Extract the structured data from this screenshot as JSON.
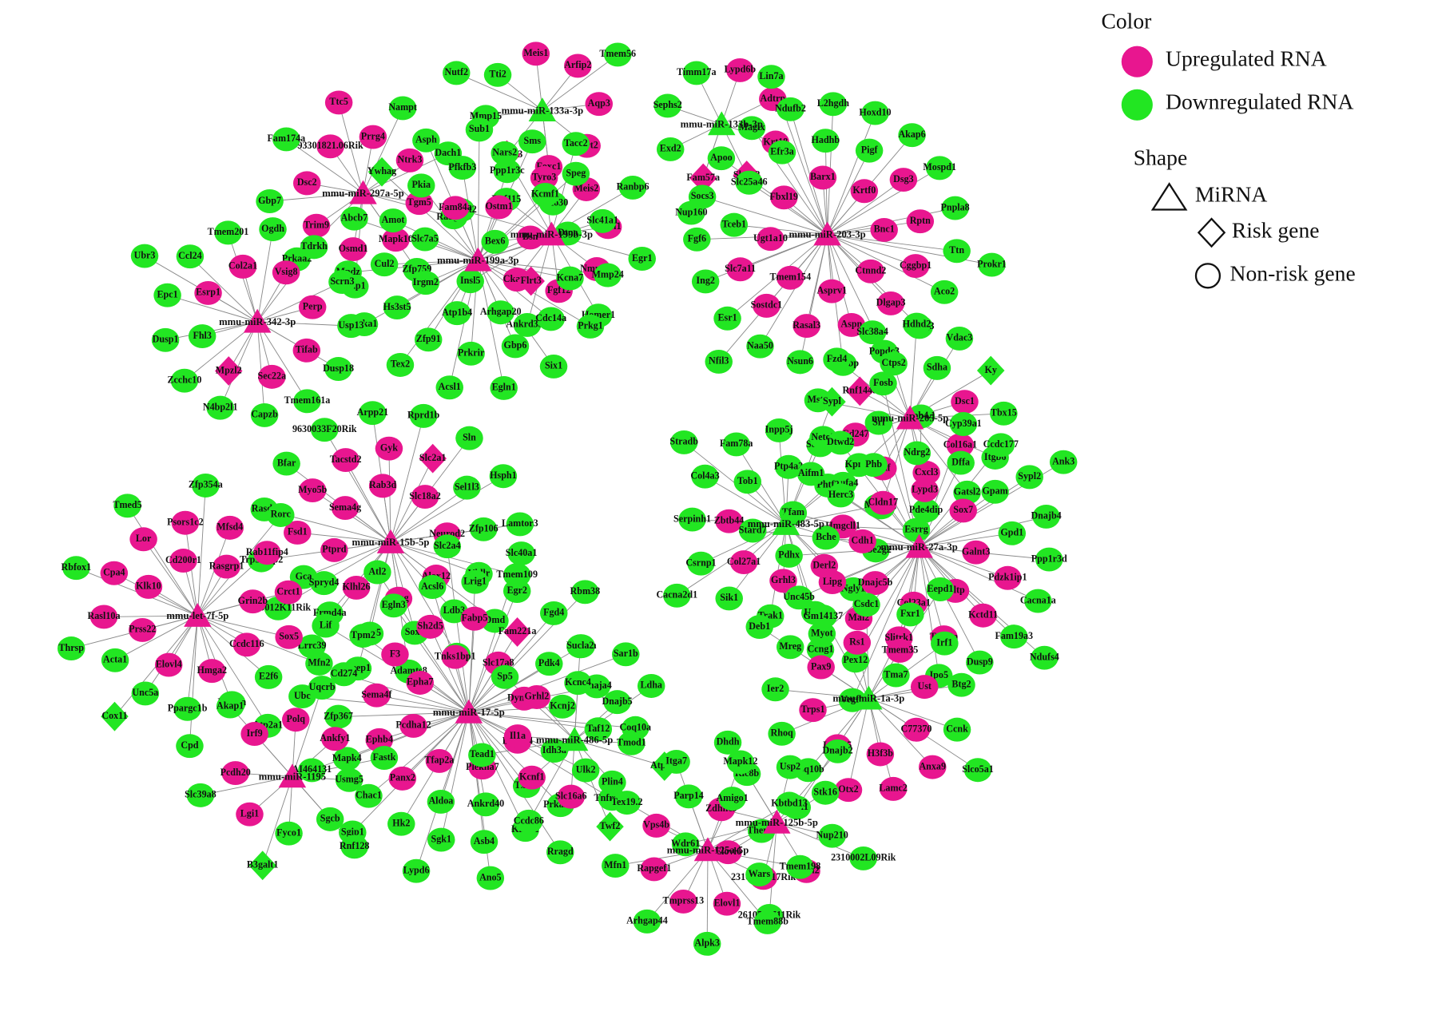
{
  "legend": {
    "color_title": "Color",
    "up_label": "Upregulated RNA",
    "down_label": "Downregulated RNA",
    "shape_title": "Shape",
    "mirna_label": "MiRNA",
    "risk_label": "Risk gene",
    "nonrisk_label": "Non-risk gene",
    "colors": {
      "up": "#e8168f",
      "down": "#22e622"
    }
  },
  "mirnas": [
    {
      "label": "mmu-miR-133a-3p",
      "color": "#22e622",
      "up": [
        "Meis1",
        "Arfip2",
        "Aqp3",
        "Prrt2",
        "Foxc1"
      ],
      "down": [
        "Mmp15",
        "Tti2",
        "Tmem56",
        "Fbxo30",
        "Nutf2"
      ],
      "up_risk": [
        "Gpr173"
      ],
      "down_risk": []
    },
    {
      "label": "mmu-miR-133b-3p",
      "color": "#22e622",
      "up": [
        "Lypd6b",
        "Adtrp",
        "Krt18"
      ],
      "down": [
        "Exd2",
        "Sephs2",
        "Timm17a",
        "Nup160"
      ],
      "up_risk": [
        "Slc1a2",
        "Fam57a"
      ],
      "down_risk": []
    },
    {
      "label": "mmu-miR-297a-5p",
      "color": "#e8168f",
      "up": [
        "93301821.06Rik",
        "Prrg4",
        "Ntrk3",
        "Tgm5",
        "Mapk10",
        "Osmd1",
        "Trim9",
        "Dsc2",
        "Ttc5"
      ],
      "down": [
        "Nampt",
        "Dach1",
        "Rabgef1",
        "Zfp759",
        "Pdp1",
        "Prkaa2",
        "Gbp7",
        "Fam174a"
      ],
      "up_risk": [],
      "down_risk": []
    },
    {
      "label": "mmu-miR-199b-3p",
      "color": "#e8168f",
      "up": [
        "Tyro3",
        "Meis2",
        "Nipsl1",
        "Nmnat2",
        "Fgf12",
        "Ckap4"
      ],
      "down": [
        "Bex6",
        "Rnf115",
        "Tacc2",
        "Ranbp6",
        "Egr1",
        "Homer1",
        "Ankrd33b",
        "Insl5",
        "B3galt2",
        "Nars2"
      ],
      "up_risk": [],
      "down_risk": []
    },
    {
      "label": "mmu-miR-199a-3p",
      "color": "#e8168f",
      "up": [
        "Fam84a",
        "Ostm1",
        "Bsn"
      ],
      "down": [
        "Arhgap20",
        "Atp1b4",
        "Irgm2",
        "Slc7a5",
        "Pfkfb3",
        "Ppp1r3c",
        "Kcmf1",
        "Dtna",
        "Kcna7",
        "Cdc14a",
        "Gbp6",
        "Prkrir",
        "Zfp91",
        "Hs3st5",
        "Cul2",
        "Amot",
        "Pkia",
        "Asph",
        "Sub1",
        "Sms",
        "Speg",
        "Slc41a1",
        "Mmp24",
        "Prkg1",
        "Six1",
        "Egln1",
        "Acsl1",
        "Tex2",
        "Phka1",
        "Mpdz",
        "Abcb7"
      ],
      "up_risk": [
        "Flrt3"
      ],
      "down_risk": [
        "Ywhag"
      ]
    },
    {
      "label": "mmu-miR-203-3p",
      "color": "#e8168f",
      "up": [
        "Krtf0",
        "Bnc1",
        "Ctnnd2",
        "Asprv1",
        "Tmem154",
        "Ugt1a10",
        "Fbxl19",
        "Barx1",
        "Dsg3",
        "Rptn",
        "Cggbp1",
        "Dlgap3",
        "Aspn",
        "Rasal3",
        "Sostdc1",
        "Slc7a11"
      ],
      "down": [
        "Tceb1",
        "Slc25a46",
        "Efr3a",
        "Hadhb",
        "Pigf",
        "Akap6",
        "Mospd1",
        "Pnpla8",
        "Ttn",
        "Aco2",
        "Atp5g3",
        "Popdc3",
        "Lrp2bp",
        "Nsun6",
        "Naa50",
        "Esr1",
        "Ing2",
        "Fgf6",
        "Socs3",
        "Apoo",
        "Magix",
        "Ndufb2",
        "L2hgdh",
        "Hoxd10",
        "Prokr1",
        "Nfil3",
        "Lin7a"
      ],
      "up_risk": [],
      "down_risk": []
    },
    {
      "label": "mmu-miR-342-3p",
      "color": "#e8168f",
      "up": [
        "Esrp1",
        "Col2a1",
        "Vsig8",
        "Perp",
        "Tifab",
        "Sec22a"
      ],
      "down": [
        "Fhl3",
        "Ccl24",
        "Tmem201",
        "Ogdh",
        "Tdrkh",
        "Scrn3",
        "Usp13",
        "Dusp18",
        "Tmem161a",
        "Capzb",
        "N4bp2l1",
        "Zcchc10",
        "Dusp1",
        "Epc1",
        "Ubr3"
      ],
      "up_risk": [
        "Mpzl2"
      ],
      "down_risk": []
    },
    {
      "label": "mmu-miR-205-5p",
      "color": "#e8168f",
      "up": [
        "Dsc1",
        "Col16a1",
        "Cxcl3",
        "Ehf",
        "Cd247"
      ],
      "down": [
        "Ctps2",
        "Sdha",
        "Tbx15",
        "Itgb6",
        "Gatsl2",
        "Pde4dip",
        "Ccdc43",
        "Ndufa4",
        "Sorbs1",
        "Mstn",
        "Fzd4",
        "Slc38a4",
        "Hdhd2",
        "Vdac3"
      ],
      "up_risk": [
        "Rnf144a"
      ],
      "down_risk": [
        "Ky"
      ]
    },
    {
      "label": "mmu-miR-15b-5p",
      "color": "#e8168f",
      "up": [
        "Ptprd",
        "Sema4g",
        "Rab3d",
        "Slc18a2",
        "Neurod2",
        "Alox12",
        "Omg",
        "Klhl26",
        "Fsd1",
        "Myo5b",
        "Tacstd2",
        "Gyk"
      ],
      "down": [
        "Sel1l3",
        "Zfp106",
        "Vldlr",
        "Ldb3",
        "Sox6",
        "Gng5",
        "Frmd4a",
        "Gca",
        "Trp53inp2",
        "Rasd1",
        "Bfar",
        "9630033F20Rik",
        "Arpp21",
        "Rprd1b",
        "Sln",
        "Hsph1",
        "Lamtor3",
        "Tmem109",
        "Dmd",
        "Cfl2",
        "Adamts8",
        "Reep1",
        "Lrrc39",
        "9930012K11Rik"
      ],
      "up_risk": [
        "Slc2a1"
      ],
      "down_risk": []
    },
    {
      "label": "mmu-miR-483-5p",
      "color": "#22e622",
      "up": [
        "Hmgcll1",
        "Derl2",
        "Grhl3",
        "Col27a1",
        "Zbtb44"
      ],
      "down": [
        "Tob1",
        "Ptp4a2",
        "Phtf2",
        "Ube2g2",
        "Ngly1",
        "Ugp2",
        "Trak1",
        "Sik1",
        "Csrnp1",
        "Serpinh1",
        "Col4a3",
        "Fam78a",
        "Inpp5j",
        "Neto2",
        "Kpna1",
        "Mtch2",
        "Esrrg",
        "Ccng1",
        "Cacna2d1",
        "Stradb"
      ],
      "up_risk": [],
      "down_risk": [
        "Sypl"
      ]
    },
    {
      "label": "mmu-miR-27a-3p",
      "color": "#e8168f",
      "up": [
        "Galnt3",
        "Gltp",
        "Col23a1",
        "Dnajc5b",
        "Cdh1",
        "Cldn17",
        "Lypd3",
        "Sox7",
        "Pdzk1ip1",
        "Kctd11",
        "Ttc39a",
        "Slitrk1",
        "Mal2",
        "Lipg"
      ],
      "down": [
        "Bche",
        "Herc3",
        "Phb",
        "Ndrg2",
        "Dffa",
        "Gpam",
        "Gpd1",
        "Ppp1r3d",
        "Cacna1a",
        "Fam19a3",
        "Dusp9",
        "Ipo5",
        "Tma7",
        "Pex12",
        "Myot",
        "Unc45b",
        "Pdhx",
        "Tfam",
        "Aifm1",
        "Dtwd2",
        "Srl",
        "Epb4.1",
        "Cyp39a1",
        "Ccdc177",
        "Sypl2",
        "Dnajb4",
        "Ndufs4",
        "Vegfb",
        "Stard7",
        "Fosb",
        "Ank3"
      ],
      "up_risk": [],
      "down_risk": []
    },
    {
      "label": "mmu-let-7f-5p",
      "color": "#e8168f",
      "up": [
        "Prss22",
        "Klk10",
        "Cd200r1",
        "Rasgrp1",
        "Grin2b",
        "Ccdc116",
        "Hmga2",
        "Elovl4",
        "Rasl10a",
        "Cpa4",
        "Lor",
        "Psors1c2",
        "Mfsd4",
        "Rab11fip4",
        "Crct1",
        "Sox5"
      ],
      "down": [
        "E2f6",
        "Hif1an",
        "Ppargc1b",
        "Unc5a",
        "Acta1",
        "Thrsp",
        "Rbfox1",
        "Tmed5",
        "Zfp354a",
        "Rorc",
        "Spryd4",
        "Mfn2",
        "Atp2a1",
        "Cpd"
      ],
      "up_risk": [],
      "down_risk": [
        "Cox11"
      ]
    },
    {
      "label": "mmu-miR-17-5p",
      "color": "#e8168f",
      "up": [
        "Tfap2a",
        "Pcdha12",
        "Epha7",
        "Tnks1bp1",
        "Slc17a8",
        "Dync1i1",
        "Bcl2l14",
        "Plekha7",
        "Panx2",
        "Ephb4",
        "Sema4f",
        "F3",
        "Sh2d5",
        "Fabp5"
      ],
      "down": [
        "Pdk4",
        "Kcnj2",
        "Idh3a",
        "Txlnb",
        "Ankrd40",
        "Aldoa",
        "Hk2",
        "Chac1",
        "Mapk4",
        "Zfp367",
        "Cd274",
        "Tpm2",
        "Egln3",
        "Acsl6",
        "Lrig1",
        "Egr2",
        "Fgd4",
        "Higd1a",
        "Dnaja4",
        "Taf12",
        "Ulk2",
        "Prkar2a",
        "Klhl31",
        "Asb4",
        "Sgk1",
        "Sgip1",
        "AI464131",
        "Ubc",
        "Lif",
        "Atl2",
        "Slc2a4",
        "Slc40a1",
        "Rbm38",
        "Sar1b",
        "Coq10a",
        "Tnfrsf21",
        "Rragd",
        "Ano5",
        "Lypd6"
      ],
      "up_risk": [
        "Fam221a"
      ],
      "down_risk": []
    },
    {
      "label": "mmu-miR-1a-3p",
      "color": "#22e622",
      "up": [
        "C77370",
        "H3f3b",
        "Lrrc55",
        "Trps1",
        "Pax9",
        "Rs1",
        "Tmem35",
        "Ust",
        "Anxa9",
        "Lamc2",
        "Otx2"
      ],
      "down": [
        "Coq10b",
        "Rhoq",
        "Ier2",
        "Mreg",
        "Gm14137",
        "Csdc1",
        "Fxr1",
        "Irf1",
        "Btg2",
        "Ccnk",
        "Slco5a1",
        "Ank1",
        "Deb1",
        "Eepd1"
      ],
      "up_risk": [],
      "down_risk": []
    },
    {
      "label": "mmu-miR-486-5p",
      "color": "#22e622",
      "up": [
        "Slc16a6",
        "Kcnf1",
        "Il1a",
        "Grhl2"
      ],
      "down": [
        "Kcnc4",
        "Dnajb5",
        "Tmod1",
        "Plin4",
        "Ccdc86",
        "Tead1",
        "Sp5",
        "Sucla2",
        "Ldha"
      ],
      "up_risk": [],
      "down_risk": [
        "Atpaf1",
        "Twf2"
      ]
    },
    {
      "label": "mmu-miR-1195",
      "color": "#e8168f",
      "up": [
        "Lgi1",
        "Pcdh20",
        "Irf9",
        "Polq",
        "Ankfy1"
      ],
      "down": [
        "Usmg5",
        "Sgcb",
        "Fyco1",
        "Slc39a8",
        "Akap1",
        "Uqcrb",
        "Fastk",
        "Rnf128"
      ],
      "up_risk": [],
      "down_risk": [
        "B3galt1"
      ]
    },
    {
      "label": "mmu-miR-125b-5p",
      "color": "#e8168f",
      "up": [
        "Bach2",
        "2310014L17Rik",
        "Elovl6",
        "Zdhhc9"
      ],
      "down": [
        "Ric8b",
        "Usp2",
        "Stk16",
        "Nup210",
        "2610528J11Rik",
        "Wdr61",
        "Dhdh",
        "Dnajb2",
        "2310002L09Rik"
      ],
      "up_risk": [],
      "down_risk": []
    },
    {
      "label": "mmu-miR-125a-5p",
      "color": "#e8168f",
      "up": [
        "Elovl1",
        "Tmprss13",
        "Rapgef1",
        "Vps4b"
      ],
      "down": [
        "Parp14",
        "Amigo1",
        "Them6",
        "Wars",
        "Alpk3",
        "Arhgap44",
        "Mfn1",
        "Tex19.2",
        "Itga7",
        "Mapk12",
        "Kbtbd13",
        "Tmem198",
        "Tmem88b"
      ],
      "up_risk": [],
      "down_risk": []
    }
  ]
}
